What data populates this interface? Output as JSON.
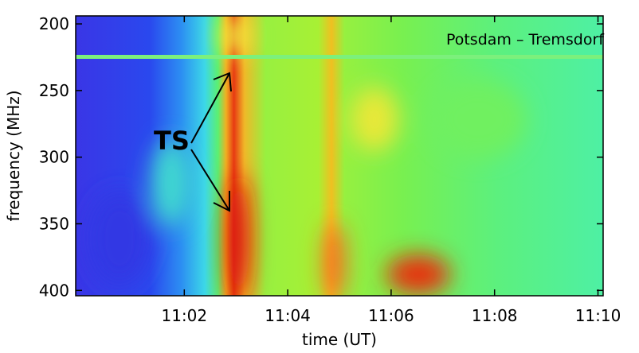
{
  "chart_data": {
    "type": "spectrogram",
    "x_label": "time (UT)",
    "y_label": "frequency (MHz)",
    "xlim": [
      659.9,
      670.1
    ],
    "xticks": [
      {
        "value": 662,
        "label": "11:02"
      },
      {
        "value": 664,
        "label": "11:04"
      },
      {
        "value": 666,
        "label": "11:06"
      },
      {
        "value": 668,
        "label": "11:08"
      },
      {
        "value": 670,
        "label": "11:10"
      }
    ],
    "ylim": [
      404,
      194
    ],
    "yticks": [
      200,
      250,
      300,
      350,
      400
    ],
    "annotations": {
      "station": "Potsdam – Tremsdorf",
      "feature": "TS"
    }
  }
}
